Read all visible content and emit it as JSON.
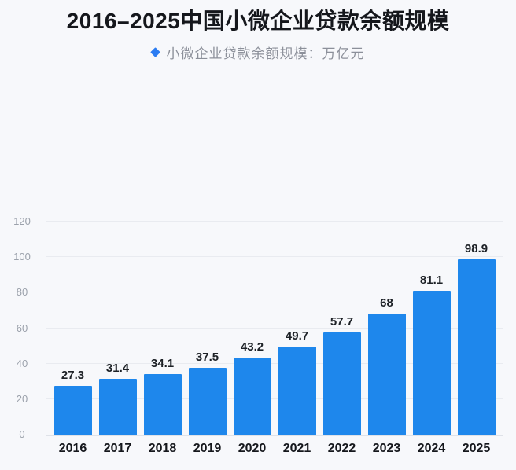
{
  "title": "2016–2025中国小微企业贷款余额规模",
  "legend": {
    "marker": "diamond-icon",
    "label": "小微企业贷款余额规模：万亿元"
  },
  "colors": {
    "background": "#F7F8FB",
    "bar": "#1E87EC",
    "legend_marker": "#2B7CF2",
    "grid": "#E9EBF0",
    "axis_line": "#DFE2E8",
    "y_label": "#9BA1AB",
    "value_label": "#1D2126",
    "x_label": "#15171C",
    "legend_text": "#8C909A",
    "title_text": "#15171C"
  },
  "chart_data": {
    "type": "bar",
    "title": "2016–2025中国小微企业贷款余额规模",
    "series_name": "小微企业贷款余额规模",
    "unit": "万亿元",
    "categories": [
      "2016",
      "2017",
      "2018",
      "2019",
      "2020",
      "2021",
      "2022",
      "2023",
      "2024",
      "2025"
    ],
    "values": [
      27.3,
      31.4,
      34.1,
      37.5,
      43.2,
      49.7,
      57.7,
      68,
      81.1,
      98.9
    ],
    "xlabel": "",
    "ylabel": "",
    "ylim": [
      0,
      120
    ],
    "yticks": [
      0,
      20,
      40,
      60,
      80,
      100,
      120
    ],
    "grid": true,
    "legend_position": "top",
    "value_labels": true
  }
}
